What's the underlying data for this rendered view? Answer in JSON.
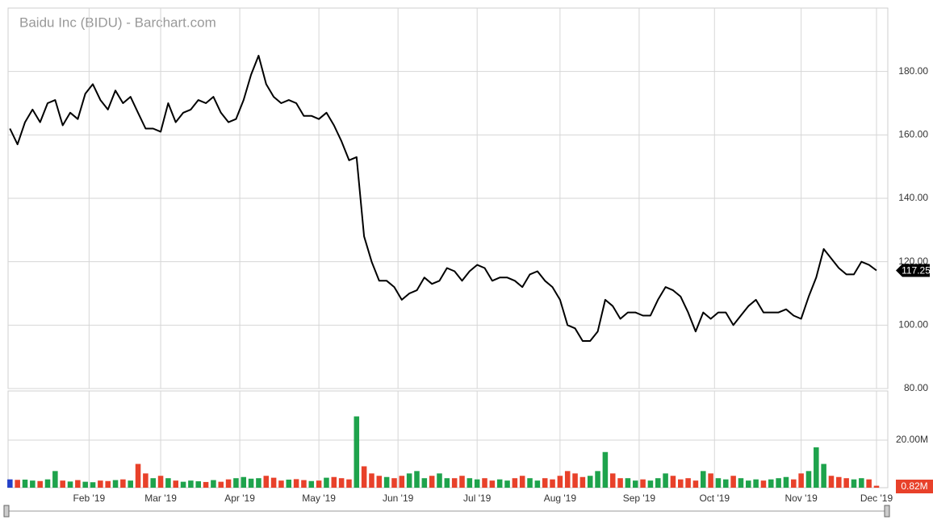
{
  "chart_data": [
    {
      "type": "line",
      "title": "Baidu Inc (BIDU) - Barchart.com",
      "color": "#000000",
      "grid": true,
      "x": [
        0,
        2,
        4,
        6,
        8,
        10,
        12,
        14,
        16,
        18,
        20,
        22,
        24,
        26,
        28,
        30,
        32,
        34,
        36,
        38,
        40,
        42,
        44,
        46,
        48,
        50,
        52,
        54,
        56,
        58,
        60,
        62,
        64,
        66,
        68,
        70,
        72,
        74,
        76,
        78,
        80,
        82,
        84,
        86,
        88,
        90,
        92,
        94,
        96,
        98,
        100,
        102,
        104,
        106,
        108,
        110,
        112,
        114,
        116,
        118,
        120,
        122,
        124,
        126,
        128,
        130,
        132,
        134,
        136,
        138,
        140,
        142,
        144,
        146,
        148,
        150,
        152,
        154,
        156,
        158,
        160,
        162,
        164,
        166,
        168,
        170,
        172,
        174,
        176,
        178,
        180,
        182,
        184,
        186,
        188,
        190,
        192,
        194,
        196,
        198,
        200,
        202,
        204,
        206,
        208,
        210,
        212,
        214,
        216,
        218,
        220,
        222,
        224,
        226,
        228,
        230
      ],
      "values": [
        162,
        157,
        164,
        168,
        164,
        170,
        171,
        163,
        167,
        165,
        173,
        176,
        171,
        168,
        174,
        170,
        172,
        167,
        162,
        162,
        161,
        170,
        164,
        167,
        168,
        171,
        170,
        172,
        167,
        164,
        165,
        171,
        179,
        185,
        176,
        172,
        170,
        171,
        170,
        166,
        166,
        165,
        167,
        163,
        158,
        152,
        153,
        128,
        120,
        114,
        114,
        112,
        108,
        110,
        111,
        115,
        113,
        114,
        118,
        117,
        114,
        117,
        119,
        118,
        114,
        115,
        115,
        114,
        112,
        116,
        117,
        114,
        112,
        108,
        100,
        99,
        95,
        95,
        98,
        108,
        106,
        102,
        104,
        104,
        103,
        103,
        108,
        112,
        111,
        109,
        104,
        98,
        104,
        102,
        104,
        104,
        100,
        103,
        106,
        108,
        104,
        104,
        104,
        105,
        103,
        102,
        109,
        115,
        124,
        121,
        118,
        116,
        116,
        120,
        119,
        117.25
      ],
      "xlim": [
        -0.5,
        233
      ],
      "xticks": [
        {
          "value": 21,
          "label": "Feb '19"
        },
        {
          "value": 40,
          "label": "Mar '19"
        },
        {
          "value": 61,
          "label": "Apr '19"
        },
        {
          "value": 82,
          "label": "May '19"
        },
        {
          "value": 103,
          "label": "Jun '19"
        },
        {
          "value": 124,
          "label": "Jul '19"
        },
        {
          "value": 146,
          "label": "Aug '19"
        },
        {
          "value": 167,
          "label": "Sep '19"
        },
        {
          "value": 187,
          "label": "Oct '19"
        },
        {
          "value": 210,
          "label": "Nov '19"
        },
        {
          "value": 230,
          "label": "Dec '19"
        }
      ],
      "ylim": [
        80,
        200
      ],
      "yticks": [
        {
          "value": 80,
          "label": "80.00"
        },
        {
          "value": 100,
          "label": "100.00"
        },
        {
          "value": 120,
          "label": "120.00"
        },
        {
          "value": 140,
          "label": "140.00"
        },
        {
          "value": 160,
          "label": "160.00"
        },
        {
          "value": 180,
          "label": "180.00"
        }
      ]
    },
    {
      "type": "bar",
      "up_color": "#1ea34c",
      "down_color": "#e8412a",
      "first_color": "#2441c9",
      "grid": true,
      "x": [
        0,
        2,
        4,
        6,
        8,
        10,
        12,
        14,
        16,
        18,
        20,
        22,
        24,
        26,
        28,
        30,
        32,
        34,
        36,
        38,
        40,
        42,
        44,
        46,
        48,
        50,
        52,
        54,
        56,
        58,
        60,
        62,
        64,
        66,
        68,
        70,
        72,
        74,
        76,
        78,
        80,
        82,
        84,
        86,
        88,
        90,
        92,
        94,
        96,
        98,
        100,
        102,
        104,
        106,
        108,
        110,
        112,
        114,
        116,
        118,
        120,
        122,
        124,
        126,
        128,
        130,
        132,
        134,
        136,
        138,
        140,
        142,
        144,
        146,
        148,
        150,
        152,
        154,
        156,
        158,
        160,
        162,
        164,
        166,
        168,
        170,
        172,
        174,
        176,
        178,
        180,
        182,
        184,
        186,
        188,
        190,
        192,
        194,
        196,
        198,
        200,
        202,
        204,
        206,
        208,
        210,
        212,
        214,
        216,
        218,
        220,
        222,
        224,
        226,
        228,
        230
      ],
      "values": [
        3.5,
        3.3,
        3.4,
        3,
        2.8,
        3.5,
        7,
        3,
        2.6,
        3.2,
        2.5,
        2.3,
        3,
        2.8,
        3.2,
        3.5,
        3,
        10,
        6,
        4,
        5,
        4,
        3,
        2.5,
        3,
        2.7,
        2.4,
        3.2,
        2.5,
        3.5,
        4,
        4.5,
        3.8,
        4,
        5,
        4.2,
        3,
        3.4,
        3.6,
        3.2,
        2.8,
        3,
        4.2,
        4.5,
        4,
        3.5,
        30,
        9,
        6,
        5,
        4.5,
        4,
        5,
        6,
        7,
        4,
        5,
        6,
        4,
        4,
        5,
        4,
        3.5,
        4,
        3,
        3.5,
        3,
        4,
        5,
        4,
        3,
        4,
        3.5,
        5,
        7,
        6,
        4.5,
        5,
        7,
        15,
        6,
        4,
        4,
        3,
        3.5,
        3,
        4,
        6,
        5,
        3.5,
        4,
        3,
        7,
        6,
        4,
        3.5,
        5,
        4,
        3,
        3.5,
        3,
        3.5,
        4,
        4.5,
        3.5,
        6,
        7,
        17,
        10,
        5,
        4.5,
        4,
        3.5,
        4,
        3.5,
        0.82
      ],
      "last_value_label": "0.82M",
      "xlim": [
        -0.5,
        233
      ],
      "ylim": [
        0,
        40.7
      ],
      "yticks": [
        {
          "value": 20,
          "label": "20.00M"
        }
      ]
    }
  ]
}
